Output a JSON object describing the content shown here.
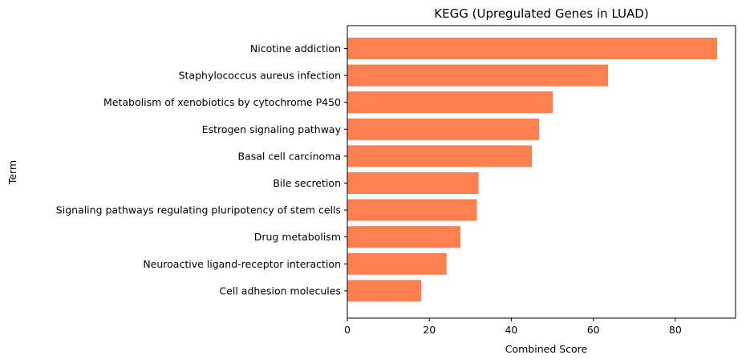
{
  "chart_data": {
    "type": "bar",
    "orientation": "horizontal",
    "title": "KEGG (Upregulated Genes in LUAD)",
    "xlabel": "Combined Score",
    "ylabel": "Term",
    "categories": [
      "Nicotine addiction",
      "Staphylococcus aureus infection",
      "Metabolism of xenobiotics by cytochrome P450",
      "Estrogen signaling pathway",
      "Basal cell carcinoma",
      "Bile secretion",
      "Signaling pathways regulating pluripotency of stem cells",
      "Drug metabolism",
      "Neuroactive ligand-receptor interaction",
      "Cell adhesion molecules"
    ],
    "values": [
      90.2,
      63.6,
      50.1,
      46.8,
      45.0,
      32.0,
      31.6,
      27.6,
      24.2,
      18.0
    ],
    "xlim": [
      0,
      94.7
    ],
    "xticks": [
      "0",
      "20",
      "40",
      "60",
      "80"
    ],
    "bar_color": "#ff7f50",
    "grid": false
  }
}
